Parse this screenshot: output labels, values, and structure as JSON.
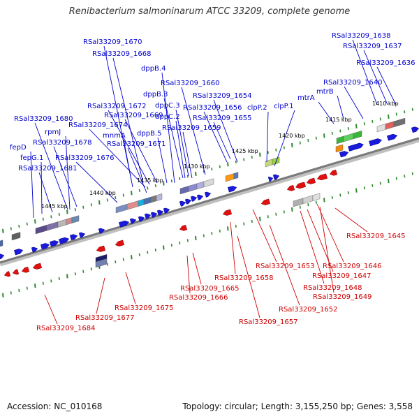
{
  "title": "Renibacterium salmoninarum ATCC 33209, complete genome",
  "footer": {
    "accession": "Accession: NC_010168",
    "summary": "Topology: circular; Length: 3,155,250 bp; Genes: 3,558"
  },
  "colors": {
    "forward": "#0000cc",
    "reverse": "#cc0000",
    "forward_gene": "#1a1adc",
    "reverse_gene": "#e01010",
    "tick": "#2e8b2e",
    "backbone": "#808080"
  },
  "scale": {
    "unit": "kbp",
    "ticks": [
      "1410 kbp",
      "1415 kbp",
      "1420 kbp",
      "1425 kbp",
      "1430 kbp",
      "1435 kbp",
      "1440 kbp",
      "1445 kbp"
    ]
  },
  "forward_labels": [
    "RSal33209_1638",
    "RSal33209_1637",
    "RSal33209_1636",
    "RSal33209_1640",
    "mtrB",
    "mtrA",
    "clpP.1",
    "clpP.2",
    "RSal33209_1654",
    "RSal33209_1656",
    "RSal33209_1655",
    "RSal33209_1660",
    "dppB.3",
    "dppC.3",
    "dppC.2",
    "RSal33209_1659",
    "dppB.4",
    "RSal33209_1670",
    "RSal33209_1668",
    "RSal33209_1672",
    "RSal33209_1669",
    "RSal33209_1674",
    "mnmA",
    "dppB.5",
    "RSal33209_1671",
    "RSal33209_1680",
    "rpmJ",
    "RSal33209_1678",
    "RSal33209_1676",
    "fepD",
    "fepG.1",
    "RSal33209_1681"
  ],
  "reverse_labels": [
    "RSal33209_1645",
    "RSal33209_1646",
    "RSal33209_1647",
    "RSal33209_1648",
    "RSal33209_1649",
    "RSal33209_1652",
    "RSal33209_1653",
    "RSal33209_1658",
    "RSal33209_1657",
    "RSal33209_1665",
    "RSal33209_1666",
    "RSal33209_1675",
    "RSal33209_1677",
    "RSal33209_1684"
  ]
}
